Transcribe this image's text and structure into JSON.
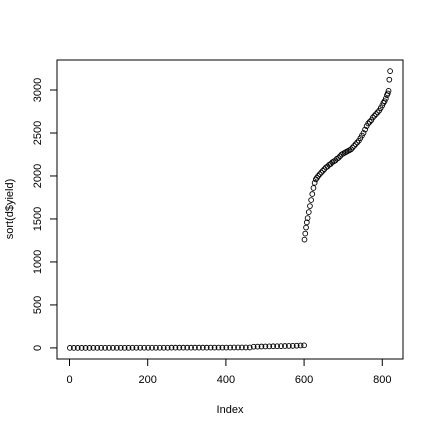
{
  "chart_data": {
    "type": "scatter",
    "xlabel": "Index",
    "ylabel": "sort(d$yield)",
    "xlim": [
      -32,
      853
    ],
    "ylim": [
      -129,
      3349
    ],
    "xticks": [
      0,
      200,
      400,
      600,
      800
    ],
    "yticks": [
      0,
      500,
      1000,
      1500,
      2000,
      2500,
      3000
    ],
    "color": "#000000",
    "x": [
      1,
      11,
      21,
      31,
      41,
      51,
      61,
      71,
      81,
      91,
      101,
      111,
      121,
      131,
      141,
      151,
      161,
      171,
      181,
      191,
      201,
      211,
      221,
      231,
      241,
      251,
      261,
      271,
      281,
      291,
      301,
      311,
      321,
      331,
      341,
      351,
      361,
      371,
      381,
      391,
      401,
      411,
      421,
      431,
      441,
      451,
      461,
      471,
      481,
      491,
      501,
      511,
      521,
      531,
      541,
      551,
      561,
      571,
      581,
      591,
      600,
      601,
      603,
      605,
      607,
      609,
      612,
      615,
      618,
      621,
      624,
      627,
      630,
      633,
      636,
      640,
      644,
      648,
      652,
      656,
      660,
      664,
      668,
      672,
      676,
      680,
      684,
      688,
      692,
      696,
      700,
      704,
      708,
      712,
      716,
      720,
      724,
      728,
      732,
      736,
      740,
      744,
      748,
      752,
      756,
      760,
      764,
      768,
      772,
      776,
      780,
      784,
      788,
      792,
      796,
      800,
      803,
      806,
      809,
      812,
      814,
      816,
      818,
      820
    ],
    "values": [
      0,
      0,
      0,
      0,
      0,
      0,
      1,
      1,
      1,
      1,
      1,
      1,
      1,
      1,
      1,
      1,
      2,
      2,
      2,
      2,
      2,
      2,
      2,
      2,
      2,
      2,
      3,
      3,
      3,
      3,
      3,
      3,
      3,
      3,
      3,
      3,
      4,
      4,
      4,
      4,
      4,
      4,
      5,
      5,
      5,
      5,
      5,
      14,
      15,
      16,
      17,
      18,
      19,
      20,
      21,
      22,
      23,
      24,
      26,
      28,
      30,
      1260,
      1330,
      1400,
      1460,
      1510,
      1580,
      1650,
      1720,
      1790,
      1860,
      1920,
      1960,
      1980,
      2000,
      2020,
      2040,
      2060,
      2080,
      2100,
      2110,
      2130,
      2140,
      2160,
      2170,
      2180,
      2200,
      2210,
      2230,
      2250,
      2260,
      2270,
      2280,
      2290,
      2300,
      2310,
      2330,
      2350,
      2370,
      2390,
      2410,
      2440,
      2470,
      2500,
      2540,
      2580,
      2610,
      2630,
      2650,
      2680,
      2700,
      2720,
      2740,
      2760,
      2790,
      2820,
      2850,
      2870,
      2900,
      2940,
      2960,
      2990,
      3120,
      3220
    ]
  }
}
